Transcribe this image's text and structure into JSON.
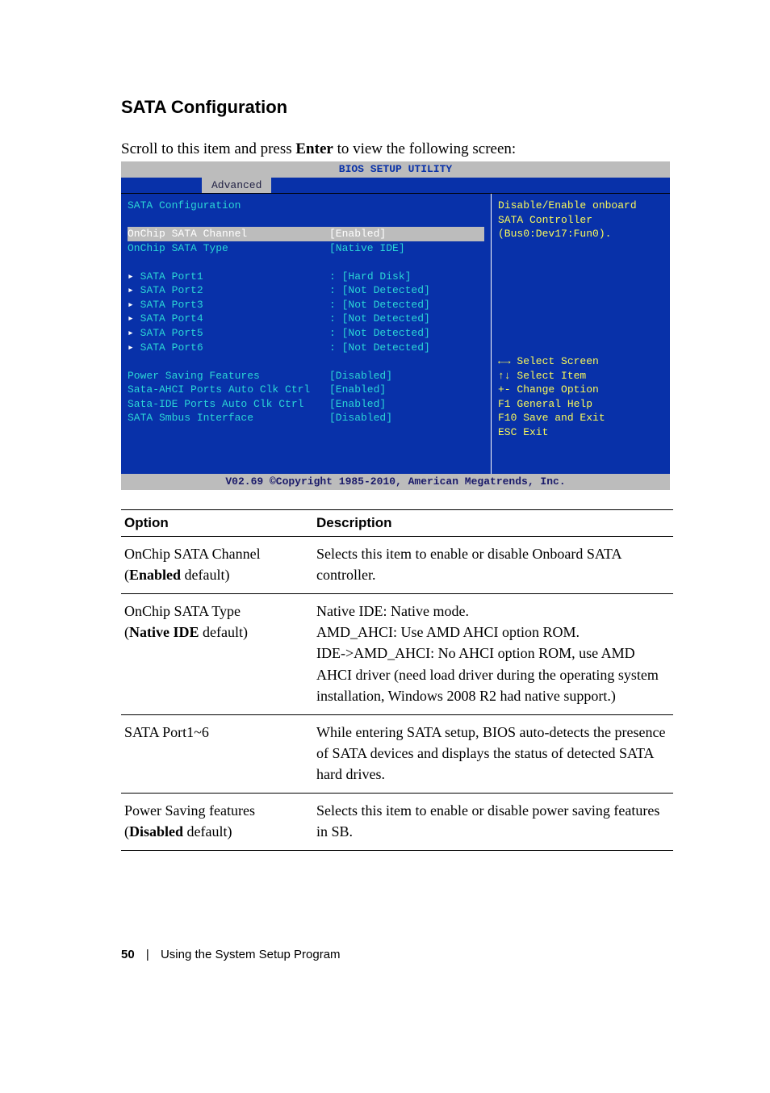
{
  "section_title": "SATA Configuration",
  "intro": {
    "pre": "Scroll to this item and press ",
    "bold": "Enter",
    "post": " to view the following screen:"
  },
  "bios": {
    "title": "BIOS SETUP UTILITY",
    "tab": "Advanced",
    "heading": "SATA Configuration",
    "items": [
      {
        "label": "OnChip SATA Channel",
        "value": "[Enabled]",
        "selected": true
      },
      {
        "label": "OnChip SATA Type",
        "value": "[Native IDE]"
      }
    ],
    "ports": [
      {
        "label": "SATA Port1",
        "value": "[Hard Disk]"
      },
      {
        "label": "SATA Port2",
        "value": "[Not Detected]"
      },
      {
        "label": "SATA Port3",
        "value": "[Not Detected]"
      },
      {
        "label": "SATA Port4",
        "value": "[Not Detected]"
      },
      {
        "label": "SATA Port5",
        "value": "[Not Detected]"
      },
      {
        "label": "SATA Port6",
        "value": "[Not Detected]"
      }
    ],
    "extras": [
      {
        "label": "Power Saving Features",
        "value": "[Disabled]"
      },
      {
        "label": "Sata-AHCI Ports Auto Clk Ctrl",
        "value": "[Enabled]"
      },
      {
        "label": "Sata-IDE Ports Auto Clk Ctrl",
        "value": "[Enabled]"
      },
      {
        "label": "SATA Smbus Interface",
        "value": "[Disabled]"
      }
    ],
    "help_top": [
      "Disable/Enable onboard",
      "SATA Controller",
      "(Bus0:Dev17:Fun0)."
    ],
    "nav": [
      "←→ Select Screen",
      "↑↓  Select Item",
      "+-  Change Option",
      "F1  General Help",
      "F10 Save and Exit",
      "ESC Exit"
    ],
    "footer": "V02.69 ©Copyright 1985-2010, American Megatrends, Inc."
  },
  "table": {
    "head_option": "Option",
    "head_desc": "Description",
    "rows": [
      {
        "opt_line1": "OnChip SATA Channel",
        "opt_paren_pre": "(",
        "opt_bold": "Enabled",
        "opt_paren_post": " default)",
        "desc": "Selects this item to enable or disable Onboard SATA controller."
      },
      {
        "opt_line1": "OnChip SATA Type",
        "opt_paren_pre": "(",
        "opt_bold": "Native IDE",
        "opt_paren_post": " default)",
        "desc": "Native IDE: Native mode.\nAMD_AHCI: Use AMD AHCI option ROM.\nIDE->AMD_AHCI: No AHCI option ROM, use AMD AHCI driver (need load driver during the operating system installation, Windows 2008 R2 had native support.)"
      },
      {
        "opt_line1": "SATA Port1~6",
        "opt_paren_pre": "",
        "opt_bold": "",
        "opt_paren_post": "",
        "desc": "While entering SATA setup, BIOS auto-detects the presence of SATA devices and displays the status of detected SATA hard drives."
      },
      {
        "opt_line1": "Power Saving features",
        "opt_paren_pre": "(",
        "opt_bold": "Disabled",
        "opt_paren_post": " default)",
        "desc": "Selects this item to enable or disable power saving features in SB."
      }
    ]
  },
  "footer": {
    "page": "50",
    "sep": "|",
    "title": "Using the System Setup Program"
  }
}
